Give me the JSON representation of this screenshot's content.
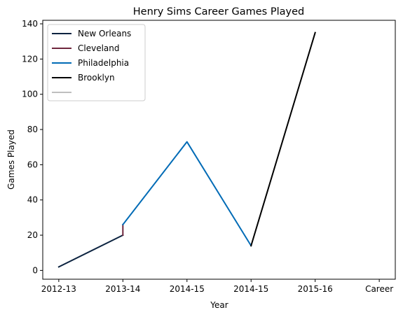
{
  "chart_data": {
    "type": "line",
    "title": "Henry Sims Career Games Played",
    "xlabel": "Year",
    "ylabel": "Games Played",
    "x_ticks": [
      "2012-13",
      "2013-14",
      "2014-15",
      "2014-15",
      "2015-16",
      "Career"
    ],
    "ylim": [
      -5,
      142
    ],
    "y_ticks": [
      0,
      20,
      40,
      60,
      80,
      100,
      120,
      140
    ],
    "grid": false,
    "legend_position": "top-left",
    "series": [
      {
        "name": "New Orleans",
        "color": "#0C2340",
        "points": [
          [
            0,
            2
          ],
          [
            1,
            20
          ]
        ]
      },
      {
        "name": "Cleveland",
        "color": "#6F263D",
        "points": [
          [
            1,
            20
          ],
          [
            1,
            26
          ]
        ]
      },
      {
        "name": "Philadelphia",
        "color": "#006BB6",
        "points": [
          [
            1,
            26
          ],
          [
            2,
            73
          ],
          [
            3,
            14
          ]
        ]
      },
      {
        "name": "Brooklyn",
        "color": "#000000",
        "points": [
          [
            3,
            14
          ],
          [
            4,
            135
          ]
        ]
      },
      {
        "name": "",
        "color": "#BFBFBF",
        "points": []
      }
    ]
  }
}
